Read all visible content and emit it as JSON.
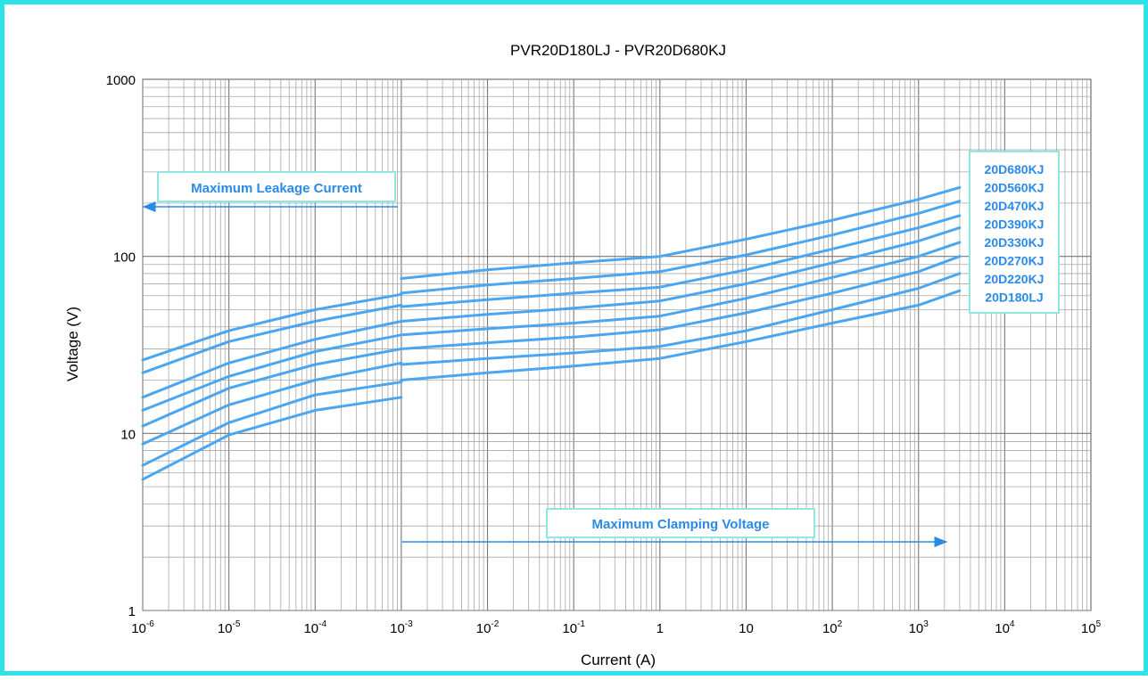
{
  "chart_data": {
    "type": "line",
    "title": "PVR20D180LJ - PVR20D680KJ",
    "xlabel": "Current (A)",
    "ylabel": "Voltage (V)",
    "xscale": "log",
    "yscale": "log",
    "xlim": [
      1e-06,
      100000.0
    ],
    "ylim": [
      1,
      1000
    ],
    "grid": true,
    "x_tick_labels": [
      {
        "base": "10",
        "exp": "-6"
      },
      {
        "base": "10",
        "exp": "-5"
      },
      {
        "base": "10",
        "exp": "-4"
      },
      {
        "base": "10",
        "exp": "-3"
      },
      {
        "base": "10",
        "exp": "-2"
      },
      {
        "base": "10",
        "exp": "-1"
      },
      {
        "base": "1",
        "exp": ""
      },
      {
        "base": "10",
        "exp": ""
      },
      {
        "base": "10",
        "exp": "2"
      },
      {
        "base": "10",
        "exp": "3"
      },
      {
        "base": "10",
        "exp": "4"
      },
      {
        "base": "10",
        "exp": "5"
      }
    ],
    "y_tick_labels": [
      "1",
      "10",
      "100",
      "1000"
    ],
    "line_color": "#4aa6f0",
    "annotation_color": "#2a8ae8",
    "box_border_color": "#8ee8e0",
    "legend_placement": "right",
    "annotations": {
      "leakage": "Maximum Leakage Current",
      "clamping": "Maximum Clamping Voltage"
    },
    "series": [
      {
        "name": "20D680KJ",
        "leakage": {
          "x": [
            1e-06,
            1e-05,
            0.0001,
            0.001
          ],
          "y": [
            26,
            38,
            50,
            61
          ]
        },
        "clamping": {
          "x": [
            0.001,
            0.01,
            0.1,
            1,
            10,
            100,
            1000,
            3000
          ],
          "y": [
            75,
            84,
            92,
            100,
            125,
            160,
            210,
            245
          ]
        }
      },
      {
        "name": "20D560KJ",
        "leakage": {
          "x": [
            1e-06,
            1e-05,
            0.0001,
            0.001
          ],
          "y": [
            22,
            33,
            43,
            53
          ]
        },
        "clamping": {
          "x": [
            0.001,
            0.01,
            0.1,
            1,
            10,
            100,
            1000,
            3000
          ],
          "y": [
            62,
            69,
            75,
            82,
            102,
            132,
            175,
            205
          ]
        }
      },
      {
        "name": "20D470KJ",
        "leakage": {
          "x": [
            1e-06,
            1e-05,
            0.0001,
            0.001
          ],
          "y": [
            16,
            25,
            34,
            43
          ]
        },
        "clamping": {
          "x": [
            0.001,
            0.01,
            0.1,
            1,
            10,
            100,
            1000,
            3000
          ],
          "y": [
            52,
            57,
            62,
            67,
            84,
            110,
            145,
            170
          ]
        }
      },
      {
        "name": "20D390KJ",
        "leakage": {
          "x": [
            1e-06,
            1e-05,
            0.0001,
            0.001
          ],
          "y": [
            13.5,
            21,
            29,
            36
          ]
        },
        "clamping": {
          "x": [
            0.001,
            0.01,
            0.1,
            1,
            10,
            100,
            1000,
            3000
          ],
          "y": [
            43,
            47,
            51,
            56,
            70,
            92,
            122,
            145
          ]
        }
      },
      {
        "name": "20D330KJ",
        "leakage": {
          "x": [
            1e-06,
            1e-05,
            0.0001,
            0.001
          ],
          "y": [
            11,
            18,
            24.5,
            30
          ]
        },
        "clamping": {
          "x": [
            0.001,
            0.01,
            0.1,
            1,
            10,
            100,
            1000,
            3000
          ],
          "y": [
            36,
            39,
            42,
            46,
            58,
            76,
            100,
            120
          ]
        }
      },
      {
        "name": "20D270KJ",
        "leakage": {
          "x": [
            1e-06,
            1e-05,
            0.0001,
            0.001
          ],
          "y": [
            8.7,
            14.5,
            20,
            25
          ]
        },
        "clamping": {
          "x": [
            0.001,
            0.01,
            0.1,
            1,
            10,
            100,
            1000,
            3000
          ],
          "y": [
            30,
            32.5,
            35,
            38.5,
            48,
            62,
            82,
            100
          ]
        }
      },
      {
        "name": "20D220KJ",
        "leakage": {
          "x": [
            1e-06,
            1e-05,
            0.0001,
            0.001
          ],
          "y": [
            6.6,
            11.5,
            16.5,
            19.5
          ]
        },
        "clamping": {
          "x": [
            0.001,
            0.01,
            0.1,
            1,
            10,
            100,
            1000,
            3000
          ],
          "y": [
            24.5,
            26.5,
            28.5,
            31,
            38,
            50,
            66,
            80
          ]
        }
      },
      {
        "name": "20D180LJ",
        "leakage": {
          "x": [
            1e-06,
            1e-05,
            0.0001,
            0.001
          ],
          "y": [
            5.5,
            9.8,
            13.5,
            16
          ]
        },
        "clamping": {
          "x": [
            0.001,
            0.01,
            0.1,
            1,
            10,
            100,
            1000,
            3000
          ],
          "y": [
            20,
            22,
            24,
            26.5,
            33,
            42,
            53,
            64
          ]
        }
      }
    ]
  }
}
